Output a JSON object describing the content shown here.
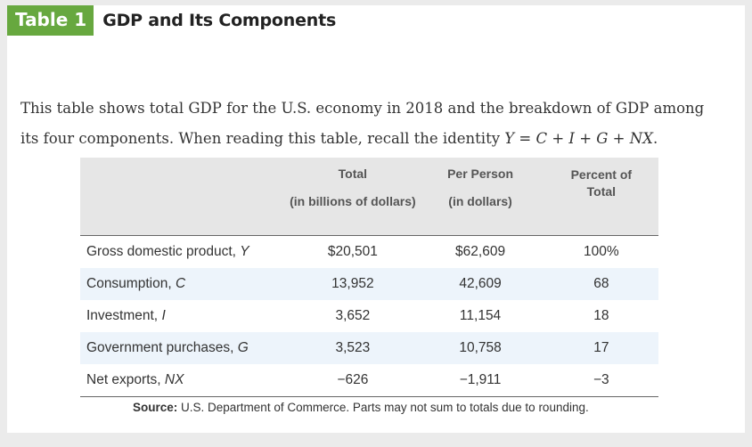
{
  "header": {
    "badge": "Table 1",
    "title": "GDP and Its Components"
  },
  "intro": {
    "text": "This table shows total GDP for the U.S. economy in 2018 and the breakdown of GDP among its four components. When reading this table, recall the identity ",
    "identity": "Y = C + I + G + NX",
    "end": "."
  },
  "table": {
    "columns": [
      {
        "line1": "Total",
        "line2": "(in billions of dollars)"
      },
      {
        "line1": "Per Person",
        "line2": "(in dollars)"
      },
      {
        "line1": "Percent of Total",
        "line2": ""
      }
    ],
    "rows": [
      {
        "label": "Gross domestic product,",
        "var": "Y",
        "total": "$20,501",
        "per_person": "$62,609",
        "percent": "100%"
      },
      {
        "label": "Consumption,",
        "var": "C",
        "total": "13,952",
        "per_person": "42,609",
        "percent": "68"
      },
      {
        "label": "Investment,",
        "var": "I",
        "total": "3,652",
        "per_person": "11,154",
        "percent": "18"
      },
      {
        "label": "Government purchases,",
        "var": "G",
        "total": "3,523",
        "per_person": "10,758",
        "percent": "17"
      },
      {
        "label": "Net exports,",
        "var": "NX",
        "total": "−626",
        "per_person": "−1,911",
        "percent": "−3"
      }
    ]
  },
  "source": {
    "label": "Source:",
    "text": "U.S. Department of Commerce. Parts may not sum to totals due to rounding."
  },
  "colors": {
    "badge": "#67a83f",
    "header_bg": "#e6e6e6",
    "stripe": "#edf4fb"
  }
}
